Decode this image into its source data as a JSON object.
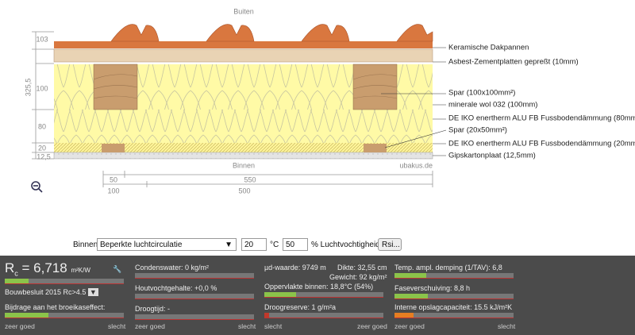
{
  "diagram": {
    "outside": "Buiten",
    "inside": "Binnen",
    "credit": "ubakus.de",
    "left_dims": [
      "103",
      "325,5",
      "100",
      "80",
      "20",
      "12,5"
    ],
    "layers": [
      "Keramische Dakpannen",
      "Asbest-Zementplatten gepreßt (10mm)",
      "Spar (100x100mm²)",
      "minerale wol 032 (100mm)",
      "DE IKO enertherm ALU FB Fussbodendämmung (80mm)",
      "Spar (20x50mm²)",
      "DE IKO enertherm ALU FB Fussbodendämmung (20mm)",
      "Gipskartonplaat (12,5mm)"
    ],
    "bottom_dims": [
      "50",
      "550",
      "100",
      "500"
    ]
  },
  "controls": {
    "label": "Binnen:",
    "select": "Beperkte luchtcirculatie",
    "temperature": "20",
    "temp_unit": "°C",
    "humidity": "50",
    "humidity_unit": "% Luchtvochtigheid",
    "button": "Rsi..."
  },
  "results": {
    "rc_symbol": "R",
    "rc_sub": "c",
    "rc_value": "= 6,718",
    "rc_unit": "m²K/W",
    "standard": "Bouwbesluit 2015 Rc>4.5",
    "greenhouse": "Bijdrage aan het broeikaseffect:",
    "condensate": "Condenswater: 0 kg/m²",
    "wood_moisture": "Houtvochtgehalte: +0,0 %",
    "drying_time": "Droogtijd: -",
    "sd_value": "µd-waarde: 9749 m",
    "thickness": "Dikte: 32,55 cm",
    "weight": "Gewicht: 92 kg/m²",
    "surface_inside": "Oppervlakte binnen: 18,8°C (54%)",
    "drying_reserve": "Droogreserve: 1 g/m²a",
    "damping": "Temp. ampl. demping (1/TAV): 6,8",
    "phase_shift": "Faseverschuiving: 8,8 h",
    "storage": "Interne opslagcapaciteit: 15.5 kJ/m²K",
    "good": "zeer goed",
    "bad": "slecht"
  }
}
